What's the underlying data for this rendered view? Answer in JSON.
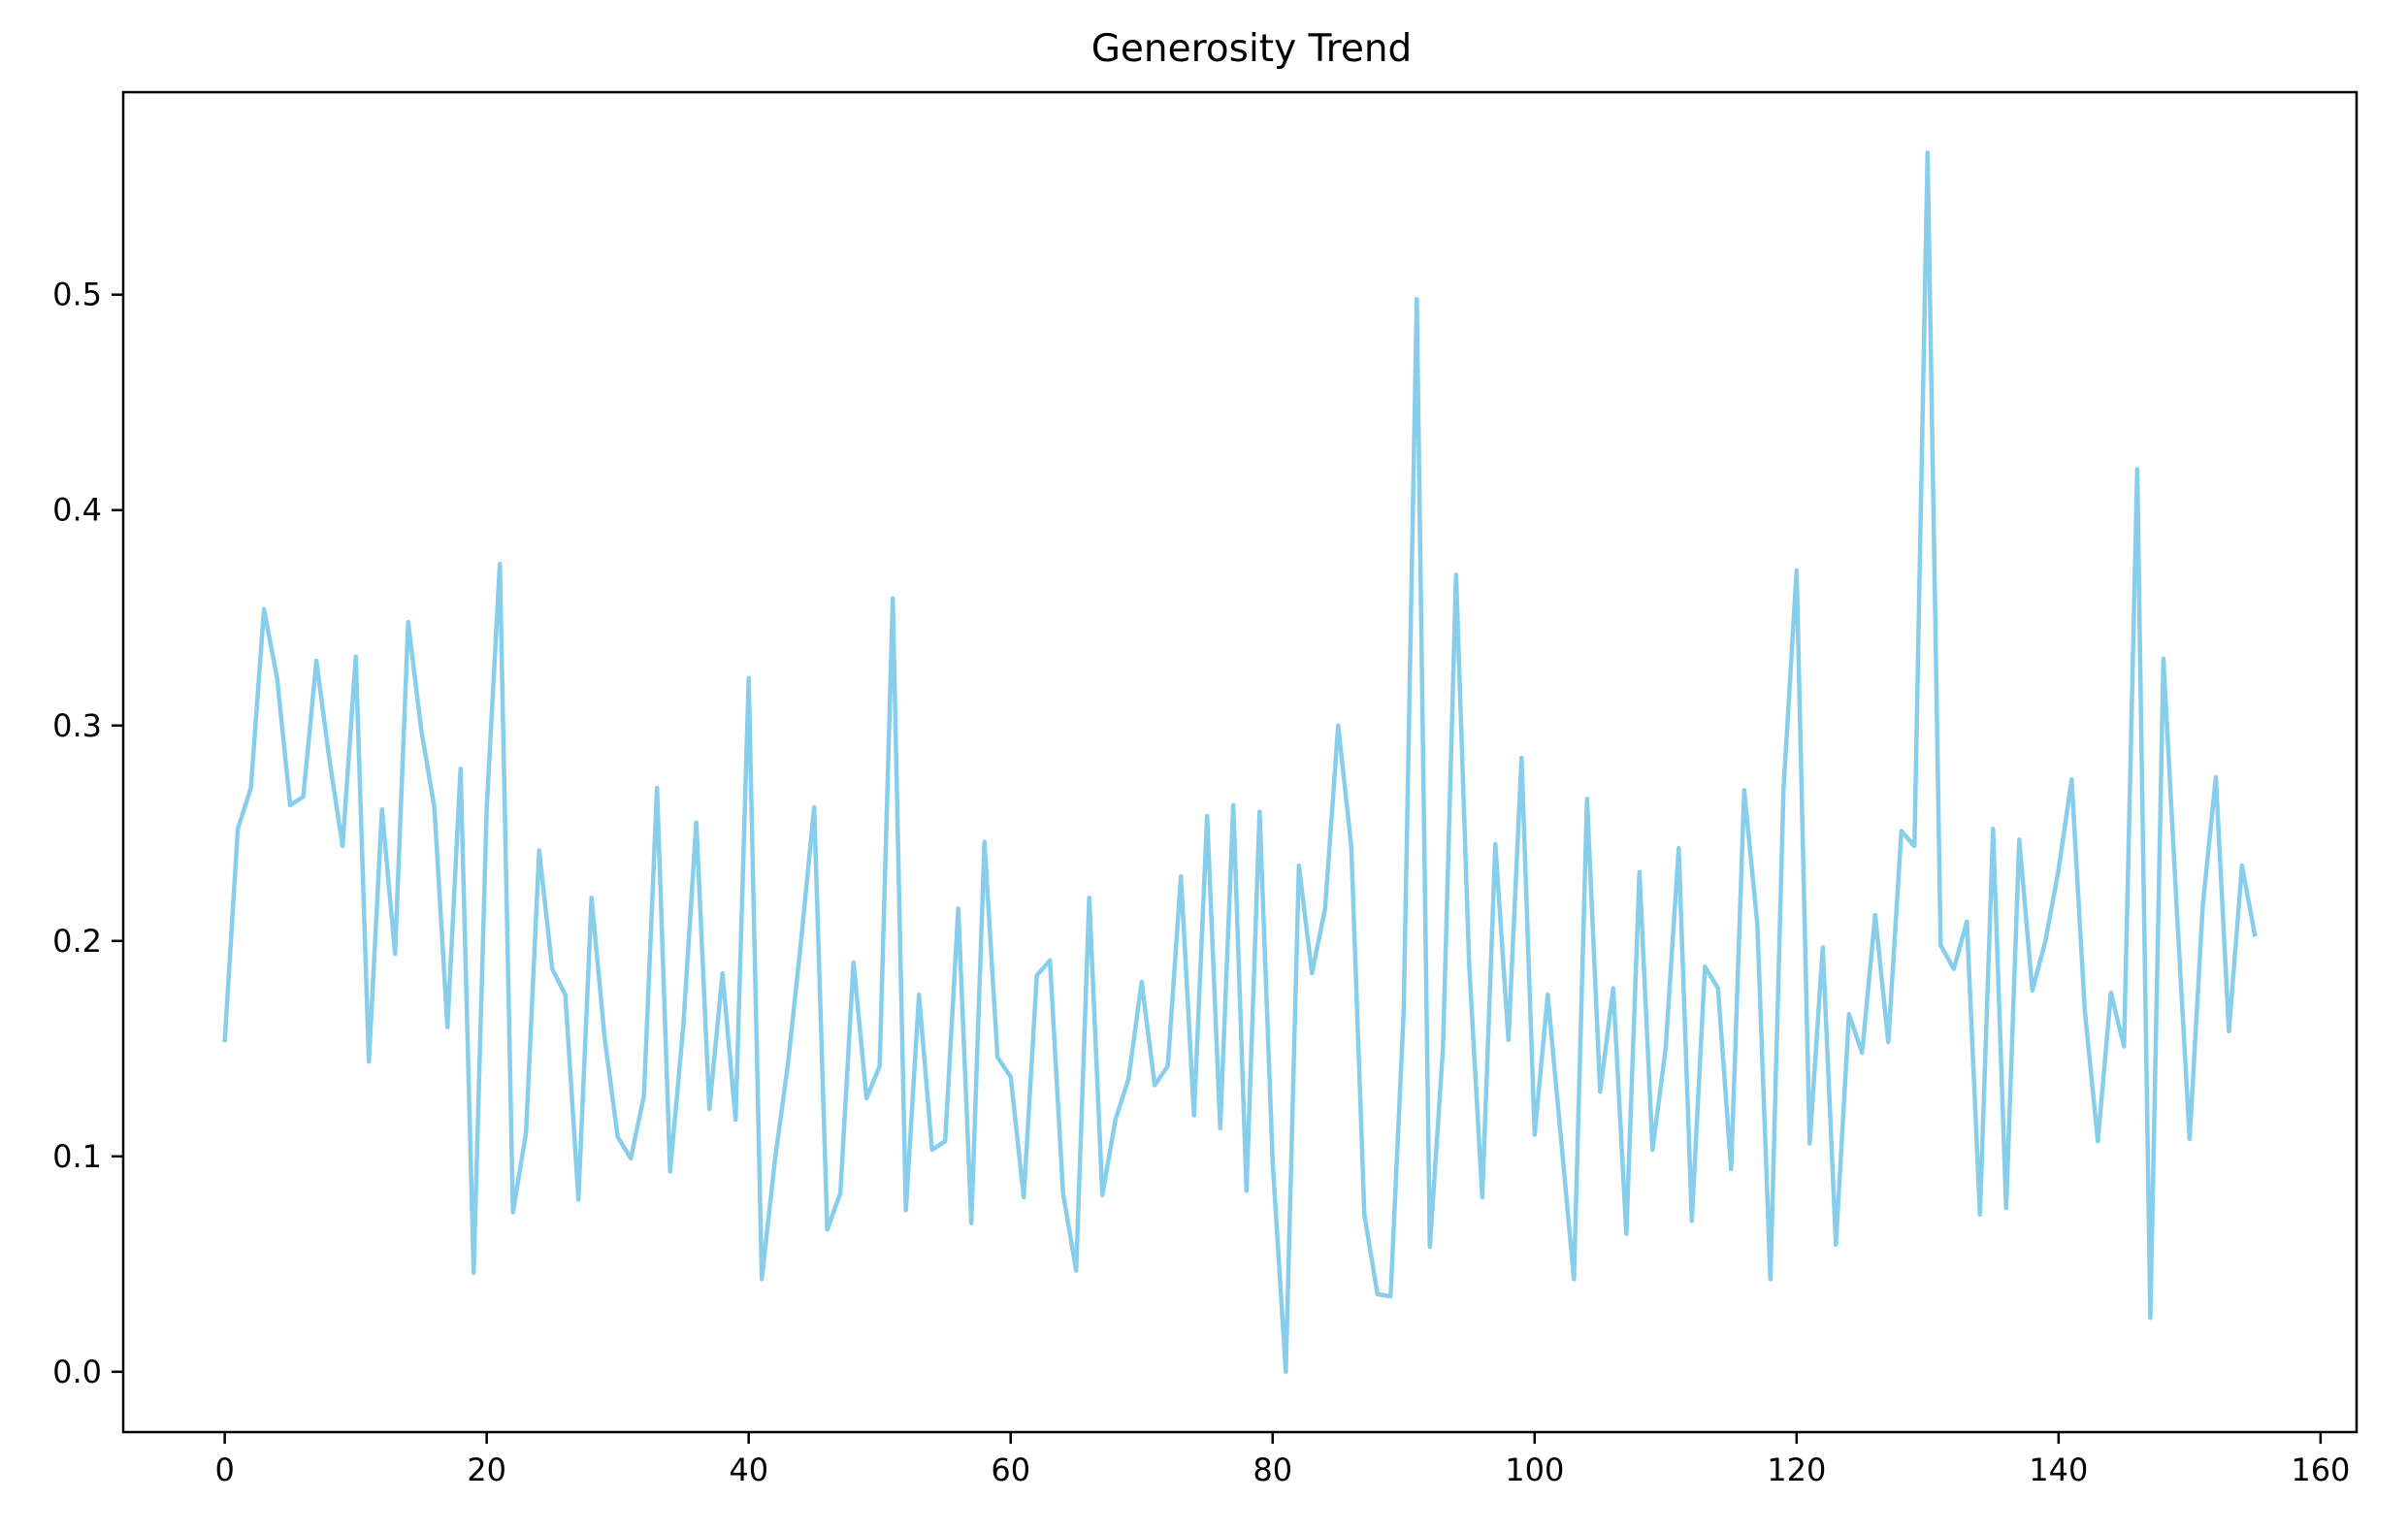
{
  "chart_data": {
    "type": "line",
    "title": "Generosity Trend",
    "xlabel": "",
    "ylabel": "",
    "xlim": [
      -7.75,
      162.75
    ],
    "ylim": [
      -0.028,
      0.594
    ],
    "xticks": [
      0,
      20,
      40,
      60,
      80,
      100,
      120,
      140,
      160
    ],
    "xtick_labels": [
      "0",
      "20",
      "40",
      "60",
      "80",
      "100",
      "120",
      "140",
      "160"
    ],
    "yticks": [
      0.0,
      0.1,
      0.2,
      0.3,
      0.4,
      0.5
    ],
    "ytick_labels": [
      "0.0",
      "0.1",
      "0.2",
      "0.3",
      "0.4",
      "0.5"
    ],
    "grid": false,
    "line_color": "#87CEEB",
    "series": [
      {
        "x": [
          0,
          1,
          2,
          3,
          4,
          5,
          6,
          7,
          8,
          9,
          10,
          11,
          12,
          13,
          14,
          15,
          16,
          17,
          18,
          19,
          20,
          21,
          22,
          23,
          24,
          25,
          26,
          27,
          28,
          29,
          30,
          31,
          32,
          33,
          34,
          35,
          36,
          37,
          38,
          39,
          40,
          41,
          42,
          43,
          44,
          45,
          46,
          47,
          48,
          49,
          50,
          51,
          52,
          53,
          54,
          55,
          56,
          57,
          58,
          59,
          60,
          61,
          62,
          63,
          64,
          65,
          66,
          67,
          68,
          69,
          70,
          71,
          72,
          73,
          74,
          75,
          76,
          77,
          78,
          79,
          80,
          81,
          82,
          83,
          84,
          85,
          86,
          87,
          88,
          89,
          90,
          91,
          92,
          93,
          94,
          95,
          96,
          97,
          98,
          99,
          100,
          101,
          102,
          103,
          104,
          105,
          106,
          107,
          108,
          109,
          110,
          111,
          112,
          113,
          114,
          115,
          116,
          117,
          118,
          119,
          120,
          121,
          122,
          123,
          124,
          125,
          126,
          127,
          128,
          129,
          130,
          131,
          132,
          133,
          134,
          135,
          136,
          137,
          138,
          139,
          140,
          141,
          142,
          143,
          144,
          145,
          146,
          147,
          148,
          149,
          150,
          151,
          152,
          153,
          154,
          155
        ],
        "values": [
          0.153,
          0.252,
          0.271,
          0.354,
          0.322,
          0.263,
          0.267,
          0.33,
          0.284,
          0.244,
          0.332,
          0.144,
          0.261,
          0.194,
          0.348,
          0.298,
          0.262,
          0.16,
          0.28,
          0.046,
          0.262,
          0.375,
          0.074,
          0.111,
          0.242,
          0.187,
          0.175,
          0.08,
          0.22,
          0.155,
          0.109,
          0.099,
          0.128,
          0.271,
          0.093,
          0.16,
          0.255,
          0.122,
          0.185,
          0.117,
          0.322,
          0.043,
          0.098,
          0.143,
          0.2,
          0.262,
          0.066,
          0.083,
          0.19,
          0.127,
          0.142,
          0.359,
          0.075,
          0.175,
          0.103,
          0.107,
          0.215,
          0.069,
          0.246,
          0.146,
          0.137,
          0.081,
          0.184,
          0.191,
          0.083,
          0.047,
          0.22,
          0.082,
          0.117,
          0.136,
          0.181,
          0.133,
          0.142,
          0.23,
          0.119,
          0.258,
          0.113,
          0.263,
          0.084,
          0.26,
          0.097,
          0.0,
          0.235,
          0.185,
          0.215,
          0.3,
          0.244,
          0.073,
          0.036,
          0.035,
          0.167,
          0.498,
          0.058,
          0.15,
          0.37,
          0.189,
          0.081,
          0.245,
          0.154,
          0.285,
          0.11,
          0.175,
          0.109,
          0.043,
          0.266,
          0.13,
          0.178,
          0.064,
          0.232,
          0.103,
          0.15,
          0.243,
          0.07,
          0.188,
          0.178,
          0.094,
          0.27,
          0.208,
          0.043,
          0.27,
          0.372,
          0.106,
          0.197,
          0.059,
          0.166,
          0.148,
          0.212,
          0.153,
          0.251,
          0.244,
          0.566,
          0.198,
          0.187,
          0.209,
          0.073,
          0.252,
          0.076,
          0.247,
          0.177,
          0.2,
          0.233,
          0.275,
          0.168,
          0.107,
          0.176,
          0.151,
          0.419,
          0.025,
          0.331,
          0.217,
          0.108,
          0.216,
          0.276,
          0.158,
          0.235,
          0.202
        ]
      }
    ]
  }
}
